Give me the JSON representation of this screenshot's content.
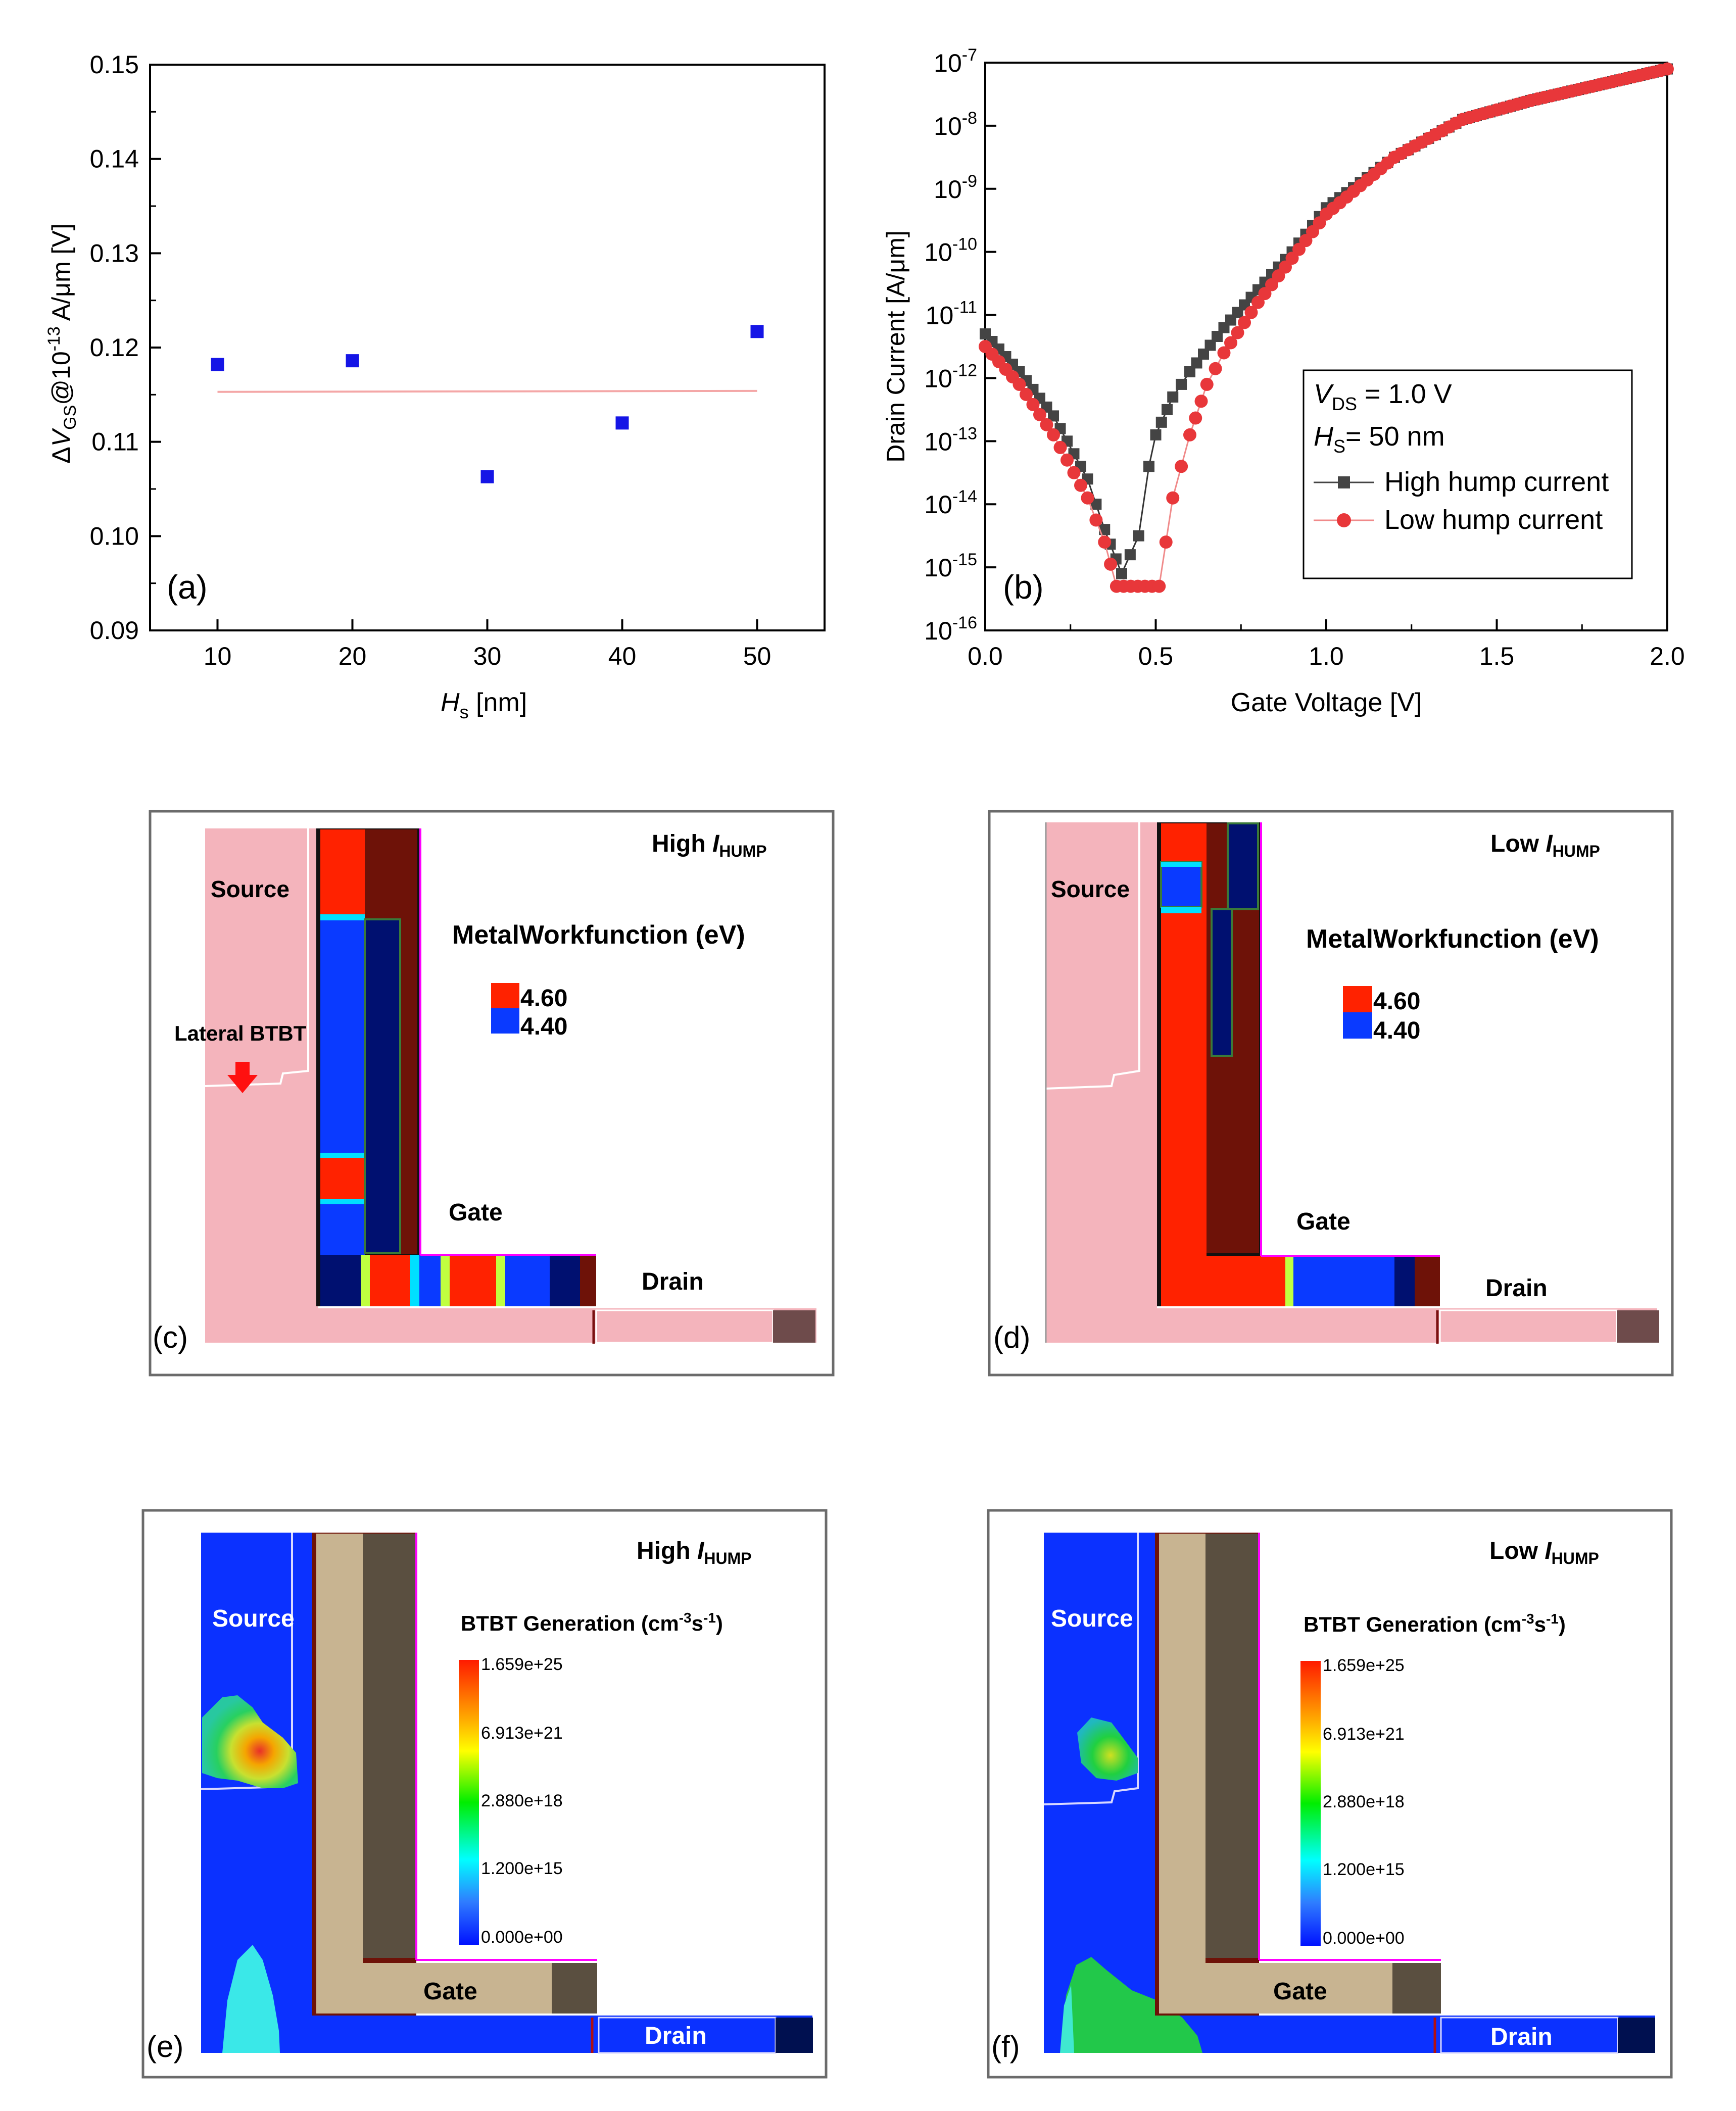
{
  "chart_data": [
    {
      "panel": "(a)",
      "type": "scatter",
      "xlabel_main": "H",
      "xlabel_sub": "s",
      "xlabel_unit": " [nm]",
      "ylabel": "ΔV_GS@10^-13 A/μm [V]",
      "ylabel_parts": {
        "delta": "Δ",
        "v": "V",
        "sub": "GS",
        "at": "@10",
        "exp": "-13",
        "unit": " A/μm [V]"
      },
      "xlim": [
        5,
        55
      ],
      "ylim": [
        0.09,
        0.15
      ],
      "xticks": [
        "10",
        "20",
        "30",
        "40",
        "50"
      ],
      "xtick_values": [
        10,
        20,
        30,
        40,
        50
      ],
      "yticks": [
        "0.09",
        "0.10",
        "0.11",
        "0.12",
        "0.13",
        "0.14",
        "0.15"
      ],
      "ytick_values": [
        0.09,
        0.1,
        0.11,
        0.12,
        0.13,
        0.14,
        0.15
      ],
      "series": [
        {
          "name": "data",
          "marker": "square",
          "color": "#1515e6",
          "x": [
            10,
            20,
            30,
            40,
            50
          ],
          "y": [
            0.1182,
            0.1186,
            0.1063,
            0.112,
            0.1217
          ]
        },
        {
          "name": "fit",
          "marker": "line",
          "color": "#f4a7a7",
          "x": [
            10,
            50
          ],
          "y": [
            0.1153,
            0.1154
          ]
        }
      ]
    },
    {
      "panel": "(b)",
      "type": "line",
      "xlabel": "Gate Voltage [V]",
      "ylabel": "Drain Current [A/μm]",
      "yscale": "log",
      "xlim": [
        0,
        2.0
      ],
      "ylim_exp": [
        -16,
        -7
      ],
      "xticks": [
        "0.0",
        "0.5",
        "1.0",
        "1.5",
        "2.0"
      ],
      "xtick_values": [
        0,
        0.5,
        1.0,
        1.5,
        2.0
      ],
      "ytick_exponents": [
        "-7",
        "-8",
        "-9",
        "-10",
        "-11",
        "-12",
        "-13",
        "-14",
        "-15",
        "-16"
      ],
      "ytick_base": "10",
      "legend": {
        "position": "right-middle",
        "vds_label": "V",
        "vds_sub": "DS",
        "vds_value": " = 1.0 V",
        "hs_label": "H",
        "hs_sub": "S",
        "hs_value": "= 50 nm",
        "entries": [
          "High hump current",
          "Low hump current"
        ]
      },
      "series": [
        {
          "name": "High hump current",
          "marker": "square",
          "color": "#444444",
          "x": [
            0.0,
            0.1,
            0.2,
            0.3,
            0.35,
            0.4,
            0.45,
            0.48,
            0.5,
            0.55,
            0.6,
            0.7,
            0.8,
            0.9,
            1.0,
            1.2,
            1.4,
            1.6,
            1.8,
            2.0
          ],
          "log_y": [
            -11.3,
            -11.9,
            -12.6,
            -13.6,
            -14.4,
            -15.1,
            -14.5,
            -13.4,
            -12.9,
            -12.3,
            -11.9,
            -11.2,
            -10.6,
            -10.0,
            -9.3,
            -8.5,
            -7.9,
            -7.6,
            -7.35,
            -7.1
          ]
        },
        {
          "name": "Low hump current",
          "marker": "circle",
          "color": "#e8373a",
          "x": [
            0.0,
            0.1,
            0.2,
            0.3,
            0.35,
            0.385,
            0.51,
            0.55,
            0.6,
            0.65,
            0.7,
            0.8,
            0.9,
            1.0,
            1.2,
            1.4,
            1.6,
            1.8,
            2.0
          ],
          "log_y": [
            -11.5,
            -12.1,
            -12.9,
            -13.9,
            -14.6,
            -15.3,
            -15.3,
            -13.9,
            -12.9,
            -12.1,
            -11.6,
            -10.8,
            -10.1,
            -9.4,
            -8.5,
            -7.9,
            -7.6,
            -7.35,
            -7.1
          ]
        }
      ]
    }
  ],
  "panels": {
    "c": {
      "label": "(c)",
      "title_prefix": "High ",
      "title_i": "I",
      "title_sub": "HUMP",
      "source": "Source",
      "gate": "Gate",
      "drain": "Drain",
      "annotation": "Lateral BTBT",
      "legend_title": "MetalWorkfunction (eV)",
      "legend_values": [
        "4.60",
        "4.40"
      ]
    },
    "d": {
      "label": "(d)",
      "title_prefix": "Low ",
      "title_i": "I",
      "title_sub": "HUMP",
      "source": "Source",
      "gate": "Gate",
      "drain": "Drain",
      "legend_title": "MetalWorkfunction (eV)",
      "legend_values": [
        "4.60",
        "4.40"
      ]
    },
    "e": {
      "label": "(e)",
      "title_prefix": "High ",
      "title_i": "I",
      "title_sub": "HUMP",
      "source": "Source",
      "gate": "Gate",
      "drain": "Drain",
      "legend_title": "BTBT Generation (cm",
      "legend_exp1": "-3",
      "legend_s": "s",
      "legend_exp2": "-1",
      "legend_close": ")",
      "scale_labels": [
        "1.659e+25",
        "6.913e+21",
        "2.880e+18",
        "1.200e+15",
        "0.000e+00"
      ]
    },
    "f": {
      "label": "(f)",
      "title_prefix": "Low ",
      "title_i": "I",
      "title_sub": "HUMP",
      "source": "Source",
      "gate": "Gate",
      "drain": "Drain",
      "legend_title": "BTBT Generation (cm",
      "legend_exp1": "-3",
      "legend_s": "s",
      "legend_exp2": "-1",
      "legend_close": ")",
      "scale_labels": [
        "1.659e+25",
        "6.913e+21",
        "2.880e+18",
        "1.200e+15",
        "0.000e+00"
      ]
    }
  },
  "colors": {
    "red": "#ff2200",
    "blue": "#0a3aff",
    "pink": "#f4b4bc",
    "darkred": "#6e1208",
    "navy": "#001070",
    "tan": "#c8b491",
    "darkbrown": "#5a4f40",
    "simblue": "#0b31ff"
  }
}
